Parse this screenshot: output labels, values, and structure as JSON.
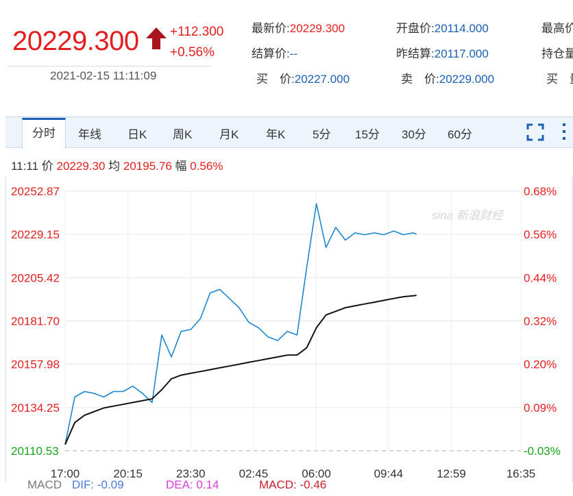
{
  "quote": {
    "price": "20229.300",
    "change": "+112.300",
    "change_pct": "+0.56%",
    "timestamp": "2021-02-15 11:11:09",
    "fields": [
      {
        "label": "最新价:",
        "value": "20229.300",
        "color": "red"
      },
      {
        "label": "开盘价:",
        "value": "20114.000",
        "color": "blue"
      },
      {
        "label": "最高价",
        "value": "",
        "color": "blue"
      },
      {
        "label": "结算价:",
        "value": "--",
        "color": "blue"
      },
      {
        "label": "昨结算:",
        "value": "20117.000",
        "color": "blue"
      },
      {
        "label": "持仓量",
        "value": "",
        "color": "blue"
      },
      {
        "label": "买　价:",
        "value": "20227.000",
        "color": "blue"
      },
      {
        "label": "卖　价:",
        "value": "20229.000",
        "color": "blue"
      },
      {
        "label": "买　量",
        "value": "",
        "color": "blue"
      }
    ]
  },
  "tabs": [
    "分时",
    "年线",
    "日K",
    "周K",
    "月K",
    "年K",
    "5分",
    "15分",
    "30分",
    "60分"
  ],
  "active_tab": "分时",
  "info_bar": {
    "time": "11:11",
    "price_label": "价",
    "price": "20229.30",
    "avg_label": "均",
    "avg": "20195.76",
    "amp_label": "幅",
    "amp": "0.56%"
  },
  "watermark": "sina 新浪财经",
  "macd": {
    "label": "MACD",
    "dif": "DIF: -0.09",
    "dea": "DEA: 0.14",
    "macd": "MACD: -0.46"
  },
  "colors": {
    "up": "#e41e1e",
    "down": "#19a319",
    "price_line": "#1a86d0",
    "avg_line": "#111111",
    "accent": "#1a5fb4"
  },
  "chart_data": {
    "type": "line",
    "x_ticks": [
      "17:00",
      "20:15",
      "23:30",
      "02:45",
      "06:00",
      "09:44",
      "12:59",
      "16:35"
    ],
    "x_range": [
      "17:00",
      "16:35"
    ],
    "y_ticks": [
      "20252.87",
      "20229.15",
      "20205.42",
      "20181.70",
      "20157.98",
      "20134.25",
      "20110.53"
    ],
    "y_ticks_pct": [
      "0.68%",
      "0.56%",
      "0.44%",
      "0.32%",
      "0.20%",
      "0.09%",
      "-0.03%"
    ],
    "ylim": [
      20110.53,
      20252.87
    ],
    "prev_settle": 20117.0,
    "grid": true,
    "series": [
      {
        "name": "价",
        "x": [
          "17:00",
          "17:30",
          "18:00",
          "18:30",
          "19:00",
          "19:30",
          "20:00",
          "20:30",
          "21:00",
          "21:30",
          "22:00",
          "22:30",
          "23:00",
          "23:30",
          "00:00",
          "00:30",
          "01:00",
          "01:30",
          "02:00",
          "02:30",
          "03:00",
          "03:30",
          "04:00",
          "04:30",
          "05:00",
          "05:30",
          "06:00",
          "06:30",
          "07:00",
          "07:30",
          "08:00",
          "08:30",
          "09:00",
          "09:30",
          "10:00",
          "10:30",
          "11:00",
          "11:11"
        ],
        "values": [
          20114,
          20140,
          20143,
          20142,
          20140,
          20143,
          20143,
          20146,
          20142,
          20137,
          20174,
          20162,
          20176,
          20177,
          20183,
          20197,
          20199,
          20194,
          20189,
          20181,
          20178,
          20173,
          20171,
          20176,
          20174,
          20211,
          20246,
          20222,
          20233,
          20226,
          20230,
          20229,
          20230,
          20229,
          20231,
          20229,
          20230,
          20229.3
        ]
      },
      {
        "name": "均",
        "x": [
          "17:00",
          "17:30",
          "18:00",
          "18:30",
          "19:00",
          "19:30",
          "20:00",
          "20:30",
          "21:00",
          "21:30",
          "22:00",
          "22:30",
          "23:00",
          "23:30",
          "00:00",
          "00:30",
          "01:00",
          "01:30",
          "02:00",
          "02:30",
          "03:00",
          "03:30",
          "04:00",
          "04:30",
          "05:00",
          "05:30",
          "06:00",
          "06:30",
          "07:00",
          "07:30",
          "08:00",
          "08:30",
          "09:00",
          "09:30",
          "10:00",
          "10:30",
          "11:00",
          "11:11"
        ],
        "values": [
          20114,
          20126,
          20130,
          20132,
          20134,
          20135,
          20136,
          20137,
          20138,
          20139,
          20144,
          20150,
          20152,
          20153,
          20154,
          20155,
          20156,
          20157,
          20158,
          20159,
          20160,
          20161,
          20162,
          20163,
          20163,
          20167,
          20178,
          20185,
          20187,
          20189,
          20190,
          20191,
          20192,
          20193,
          20194,
          20195,
          20195.5,
          20195.76
        ]
      }
    ]
  }
}
